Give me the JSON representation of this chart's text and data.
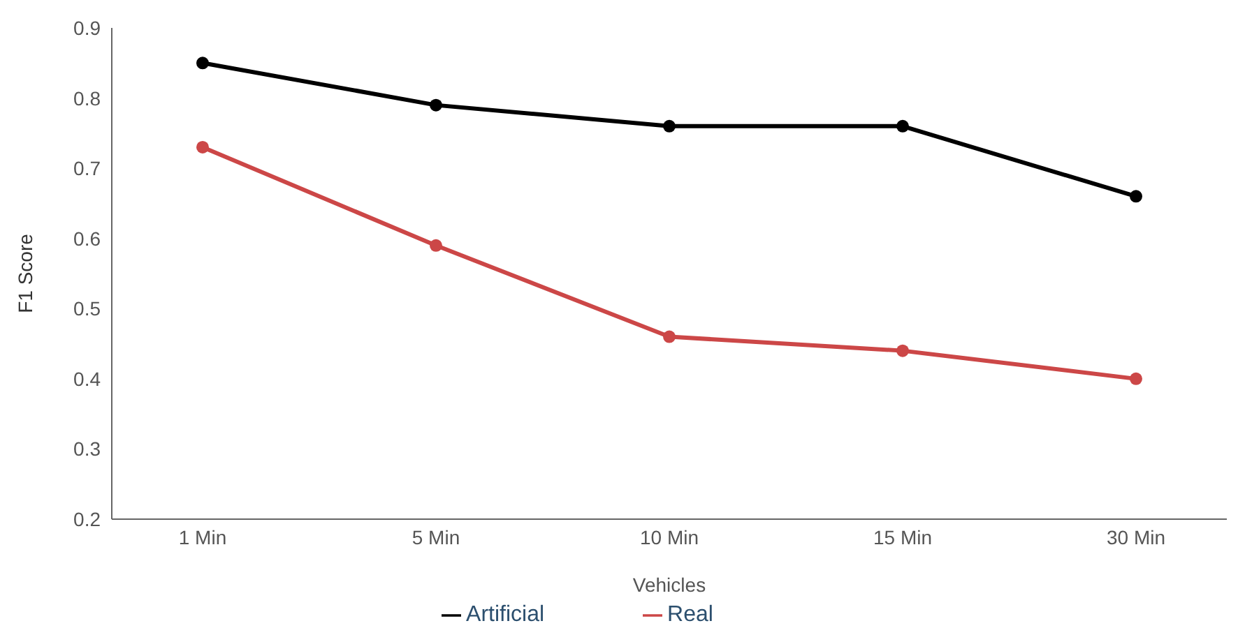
{
  "chart_data": {
    "type": "line",
    "xlabel": "Vehicles",
    "ylabel": "F1 Score",
    "categories": [
      "1 Min",
      "5 Min",
      "10 Min",
      "15 Min",
      "30 Min"
    ],
    "series": [
      {
        "name": "Artificial",
        "color": "#000000",
        "values": [
          0.85,
          0.79,
          0.76,
          0.76,
          0.66
        ]
      },
      {
        "name": "Real",
        "color": "#cc4747",
        "values": [
          0.73,
          0.59,
          0.46,
          0.44,
          0.4
        ]
      }
    ],
    "ylim": [
      0.2,
      0.9
    ],
    "yticks": [
      0.2,
      0.3,
      0.4,
      0.5,
      0.6,
      0.7,
      0.8,
      0.9
    ],
    "grid": false,
    "legend": "bottom",
    "marker": "circle",
    "line_style": "solid"
  }
}
